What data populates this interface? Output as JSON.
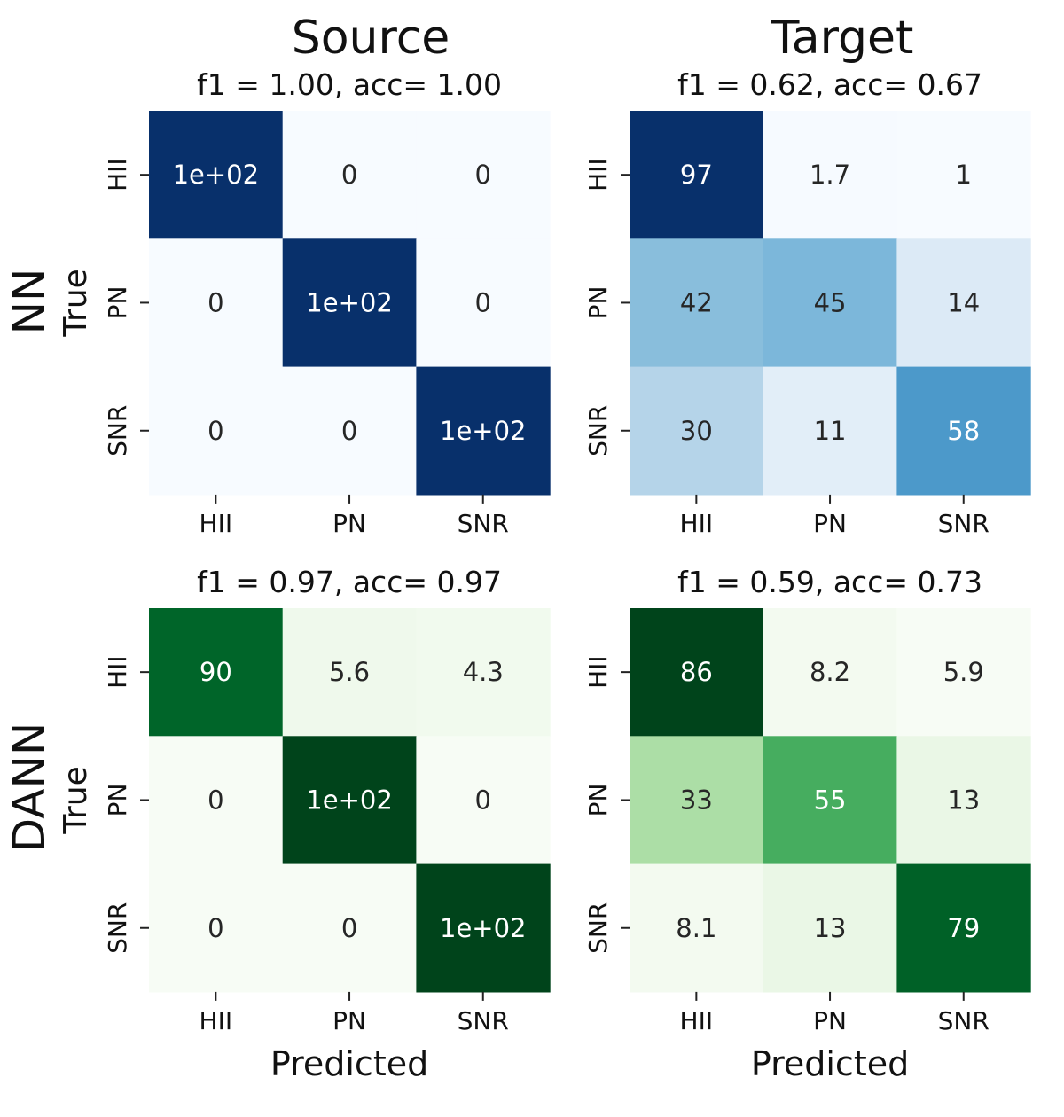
{
  "columns": {
    "source": "Source",
    "target": "Target"
  },
  "rows": {
    "nn": "NN",
    "dann": "DANN"
  },
  "palettes": {
    "blues": [
      "#f7fbff",
      "#deebf7",
      "#c6dbef",
      "#9ecae1",
      "#6baed6",
      "#4292c6",
      "#2171b5",
      "#08519c",
      "#08306b"
    ],
    "greens": [
      "#f7fcf5",
      "#e5f5e0",
      "#c7e9c0",
      "#a1d99b",
      "#74c476",
      "#41ab5d",
      "#238b45",
      "#006d2c",
      "#00441b"
    ]
  },
  "chart_data": [
    {
      "type": "heatmap",
      "title": "f1 = 1.00, acc= 1.00",
      "row_label": "NN",
      "column_label": "Source",
      "xlabel": "",
      "ylabel": "True",
      "x_categories": [
        "HII",
        "PN",
        "SNR"
      ],
      "y_categories": [
        "HII",
        "PN",
        "SNR"
      ],
      "colormap": "blues",
      "values": [
        [
          100,
          0,
          0
        ],
        [
          0,
          100,
          0
        ],
        [
          0,
          0,
          100
        ]
      ],
      "cell_labels": [
        [
          "1e+02",
          "0",
          "0"
        ],
        [
          "0",
          "1e+02",
          "0"
        ],
        [
          "0",
          "0",
          "1e+02"
        ]
      ]
    },
    {
      "type": "heatmap",
      "title": "f1 = 0.62, acc= 0.67",
      "row_label": "NN",
      "column_label": "Target",
      "xlabel": "",
      "ylabel": "",
      "x_categories": [
        "HII",
        "PN",
        "SNR"
      ],
      "y_categories": [
        "HII",
        "PN",
        "SNR"
      ],
      "colormap": "blues",
      "values": [
        [
          97,
          1.7,
          1
        ],
        [
          42,
          45,
          14
        ],
        [
          30,
          11,
          58
        ]
      ],
      "cell_labels": [
        [
          "97",
          "1.7",
          "1"
        ],
        [
          "42",
          "45",
          "14"
        ],
        [
          "30",
          "11",
          "58"
        ]
      ]
    },
    {
      "type": "heatmap",
      "title": "f1 = 0.97, acc= 0.97",
      "row_label": "DANN",
      "column_label": "Source",
      "xlabel": "Predicted",
      "ylabel": "True",
      "x_categories": [
        "HII",
        "PN",
        "SNR"
      ],
      "y_categories": [
        "HII",
        "PN",
        "SNR"
      ],
      "colormap": "greens",
      "values": [
        [
          90,
          5.6,
          4.3
        ],
        [
          0,
          100,
          0
        ],
        [
          0,
          0,
          100
        ]
      ],
      "cell_labels": [
        [
          "90",
          "5.6",
          "4.3"
        ],
        [
          "0",
          "1e+02",
          "0"
        ],
        [
          "0",
          "0",
          "1e+02"
        ]
      ]
    },
    {
      "type": "heatmap",
      "title": "f1 = 0.59, acc= 0.73",
      "row_label": "DANN",
      "column_label": "Target",
      "xlabel": "Predicted",
      "ylabel": "",
      "x_categories": [
        "HII",
        "PN",
        "SNR"
      ],
      "y_categories": [
        "HII",
        "PN",
        "SNR"
      ],
      "colormap": "greens",
      "values": [
        [
          86,
          8.2,
          5.9
        ],
        [
          33,
          55,
          13
        ],
        [
          8.1,
          13,
          79
        ]
      ],
      "cell_labels": [
        [
          "86",
          "8.2",
          "5.9"
        ],
        [
          "33",
          "55",
          "13"
        ],
        [
          "8.1",
          "13",
          "79"
        ]
      ]
    }
  ]
}
